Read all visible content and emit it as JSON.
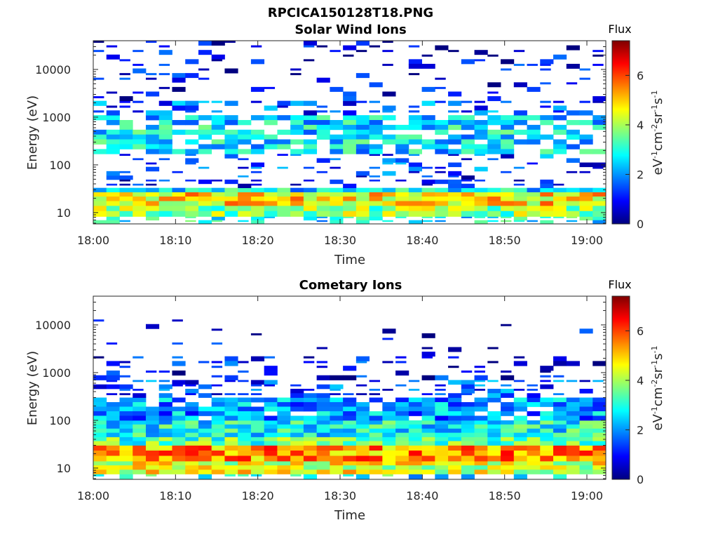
{
  "figure": {
    "title": "RPCICA150128T18.PNG"
  },
  "colormap": {
    "name": "jet",
    "stops": [
      "#00007f",
      "#0000ff",
      "#007fff",
      "#00ffff",
      "#7fff7f",
      "#ffff00",
      "#ff7f00",
      "#ff0000",
      "#7f0000"
    ]
  },
  "chart_data": [
    {
      "type": "heatmap",
      "id": "solar",
      "title": "Solar Wind Ions",
      "xlabel": "Time",
      "ylabel": "Energy (eV)",
      "y_scale": "log",
      "x_ticks": [
        "18:00",
        "18:10",
        "18:20",
        "18:30",
        "18:40",
        "18:50",
        "19:00"
      ],
      "x_tick_minutes": [
        0,
        10,
        20,
        30,
        40,
        50,
        60
      ],
      "xlim_minutes": [
        0,
        62.3
      ],
      "y_ticks": [
        "10",
        "100",
        "1000",
        "10000"
      ],
      "y_tick_values": [
        10,
        100,
        1000,
        10000
      ],
      "ylim": [
        5.8,
        40000
      ],
      "colorbar": {
        "label": "Flux",
        "units": "eV⁻¹cm⁻²sr⁻¹s⁻¹",
        "ticks": [
          "0",
          "2",
          "4",
          "6"
        ],
        "tick_values": [
          0,
          2,
          4,
          6
        ],
        "range": [
          0,
          7.4
        ]
      },
      "time_bins": 39,
      "flux_bands": [
        {
          "e_min": 5.8,
          "e_max": 8.3,
          "flux_mean": 2.8,
          "coverage": 0.55
        },
        {
          "e_min": 8.3,
          "e_max": 14,
          "flux_mean": 3.8,
          "coverage": 1.0
        },
        {
          "e_min": 14,
          "e_max": 27,
          "flux_mean": 4.8,
          "coverage": 1.0
        },
        {
          "e_min": 27,
          "e_max": 33,
          "flux_mean": 2.6,
          "coverage": 1.0
        },
        {
          "e_min": 33,
          "e_max": 60,
          "flux_mean": 1.2,
          "coverage": 0.28
        },
        {
          "e_min": 60,
          "e_max": 170,
          "flux_mean": 1.4,
          "coverage": 0.35
        },
        {
          "e_min": 170,
          "e_max": 1100,
          "flux_mean": 2.6,
          "coverage": 0.72
        },
        {
          "e_min": 1100,
          "e_max": 2200,
          "flux_mean": 1.5,
          "coverage": 0.5
        },
        {
          "e_min": 2200,
          "e_max": 40000,
          "flux_mean": 0.7,
          "coverage": 0.2
        }
      ]
    },
    {
      "type": "heatmap",
      "id": "comet",
      "title": "Cometary Ions",
      "xlabel": "Time",
      "ylabel": "Energy (eV)",
      "y_scale": "log",
      "x_ticks": [
        "18:00",
        "18:10",
        "18:20",
        "18:30",
        "18:40",
        "18:50",
        "19:00"
      ],
      "x_tick_minutes": [
        0,
        10,
        20,
        30,
        40,
        50,
        60
      ],
      "xlim_minutes": [
        0,
        62.3
      ],
      "y_ticks": [
        "10",
        "100",
        "1000",
        "10000"
      ],
      "y_tick_values": [
        10,
        100,
        1000,
        10000
      ],
      "ylim": [
        5.8,
        40000
      ],
      "colorbar": {
        "label": "Flux",
        "units": "eV⁻¹cm⁻²sr⁻¹s⁻¹",
        "ticks": [
          "0",
          "2",
          "4",
          "6"
        ],
        "tick_values": [
          0,
          2,
          4,
          6
        ],
        "range": [
          0,
          7.4
        ]
      },
      "time_bins": 39,
      "flux_bands": [
        {
          "e_min": 5.8,
          "e_max": 7.5,
          "flux_mean": 2.8,
          "coverage": 0.4
        },
        {
          "e_min": 7.5,
          "e_max": 14,
          "flux_mean": 4.4,
          "coverage": 1.0
        },
        {
          "e_min": 14,
          "e_max": 30,
          "flux_mean": 5.4,
          "coverage": 1.0
        },
        {
          "e_min": 30,
          "e_max": 45,
          "flux_mean": 3.4,
          "coverage": 1.0
        },
        {
          "e_min": 45,
          "e_max": 100,
          "flux_mean": 2.8,
          "coverage": 1.0
        },
        {
          "e_min": 100,
          "e_max": 300,
          "flux_mean": 2.0,
          "coverage": 0.85
        },
        {
          "e_min": 300,
          "e_max": 700,
          "flux_mean": 1.4,
          "coverage": 0.55
        },
        {
          "e_min": 700,
          "e_max": 2200,
          "flux_mean": 0.9,
          "coverage": 0.32
        },
        {
          "e_min": 2200,
          "e_max": 13000,
          "flux_mean": 0.6,
          "coverage": 0.05
        }
      ]
    }
  ]
}
